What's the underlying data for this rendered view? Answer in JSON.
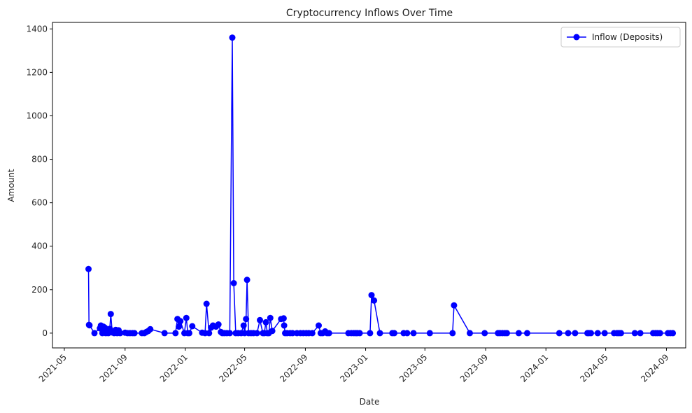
{
  "chart_data": {
    "type": "line",
    "title": "Cryptocurrency Inflows Over Time",
    "xlabel": "Date",
    "ylabel": "Amount",
    "x_range": [
      "2021-04-07",
      "2024-10-10"
    ],
    "ylim": [
      -68,
      1430
    ],
    "x_ticks": [
      "2021-05",
      "2021-09",
      "2022-01",
      "2022-05",
      "2022-09",
      "2023-01",
      "2023-05",
      "2023-09",
      "2024-01",
      "2024-05",
      "2024-09"
    ],
    "y_ticks": [
      0,
      200,
      400,
      600,
      800,
      1000,
      1200,
      1400
    ],
    "grid": false,
    "legend_position": "top-right",
    "colors": {
      "series": "#0000ff",
      "axis": "#000000",
      "legend_border": "#cccccc"
    },
    "series": [
      {
        "name": "Inflow (Deposits)",
        "marker": "circle",
        "points": [
          [
            "2021-06-19",
            295
          ],
          [
            "2021-06-20",
            38
          ],
          [
            "2021-06-21",
            36
          ],
          [
            "2021-07-01",
            0
          ],
          [
            "2021-07-12",
            22
          ],
          [
            "2021-07-14",
            35
          ],
          [
            "2021-07-17",
            0
          ],
          [
            "2021-07-19",
            30
          ],
          [
            "2021-07-22",
            25
          ],
          [
            "2021-07-24",
            0
          ],
          [
            "2021-07-26",
            12
          ],
          [
            "2021-07-29",
            0
          ],
          [
            "2021-08-01",
            20
          ],
          [
            "2021-08-03",
            88
          ],
          [
            "2021-08-06",
            3
          ],
          [
            "2021-08-10",
            0
          ],
          [
            "2021-08-13",
            15
          ],
          [
            "2021-08-16",
            0
          ],
          [
            "2021-08-19",
            13
          ],
          [
            "2021-08-22",
            0
          ],
          [
            "2021-09-01",
            2
          ],
          [
            "2021-09-06",
            0
          ],
          [
            "2021-09-11",
            0
          ],
          [
            "2021-09-16",
            0
          ],
          [
            "2021-09-20",
            0
          ],
          [
            "2021-10-05",
            0
          ],
          [
            "2021-10-10",
            0
          ],
          [
            "2021-10-14",
            5
          ],
          [
            "2021-10-18",
            10
          ],
          [
            "2021-10-22",
            18
          ],
          [
            "2021-11-20",
            0
          ],
          [
            "2021-12-12",
            0
          ],
          [
            "2021-12-16",
            65
          ],
          [
            "2021-12-19",
            30
          ],
          [
            "2021-12-22",
            55
          ],
          [
            "2021-12-30",
            0
          ],
          [
            "2022-01-03",
            70
          ],
          [
            "2022-01-06",
            0
          ],
          [
            "2022-01-09",
            0
          ],
          [
            "2022-01-15",
            32
          ],
          [
            "2022-02-04",
            2
          ],
          [
            "2022-02-10",
            0
          ],
          [
            "2022-02-13",
            135
          ],
          [
            "2022-02-18",
            0
          ],
          [
            "2022-02-22",
            25
          ],
          [
            "2022-02-26",
            35
          ],
          [
            "2022-03-04",
            30
          ],
          [
            "2022-03-09",
            40
          ],
          [
            "2022-03-14",
            5
          ],
          [
            "2022-03-17",
            0
          ],
          [
            "2022-03-21",
            0
          ],
          [
            "2022-03-26",
            0
          ],
          [
            "2022-04-01",
            0
          ],
          [
            "2022-04-06",
            1360
          ],
          [
            "2022-04-09",
            230
          ],
          [
            "2022-04-13",
            0
          ],
          [
            "2022-04-18",
            0
          ],
          [
            "2022-04-24",
            0
          ],
          [
            "2022-04-29",
            35
          ],
          [
            "2022-05-01",
            0
          ],
          [
            "2022-05-04",
            65
          ],
          [
            "2022-05-06",
            245
          ],
          [
            "2022-05-09",
            0
          ],
          [
            "2022-05-14",
            0
          ],
          [
            "2022-05-19",
            0
          ],
          [
            "2022-05-26",
            0
          ],
          [
            "2022-06-01",
            60
          ],
          [
            "2022-06-07",
            0
          ],
          [
            "2022-06-10",
            0
          ],
          [
            "2022-06-13",
            50
          ],
          [
            "2022-06-16",
            0
          ],
          [
            "2022-06-19",
            0
          ],
          [
            "2022-06-22",
            70
          ],
          [
            "2022-06-26",
            10
          ],
          [
            "2022-07-14",
            65
          ],
          [
            "2022-07-19",
            68
          ],
          [
            "2022-07-20",
            35
          ],
          [
            "2022-07-22",
            0
          ],
          [
            "2022-07-26",
            0
          ],
          [
            "2022-08-01",
            0
          ],
          [
            "2022-08-06",
            0
          ],
          [
            "2022-08-15",
            0
          ],
          [
            "2022-08-22",
            0
          ],
          [
            "2022-08-28",
            0
          ],
          [
            "2022-09-03",
            0
          ],
          [
            "2022-09-08",
            0
          ],
          [
            "2022-09-15",
            0
          ],
          [
            "2022-09-28",
            35
          ],
          [
            "2022-10-02",
            0
          ],
          [
            "2022-10-06",
            0
          ],
          [
            "2022-10-11",
            8
          ],
          [
            "2022-10-15",
            0
          ],
          [
            "2022-10-19",
            0
          ],
          [
            "2022-11-27",
            0
          ],
          [
            "2022-12-03",
            0
          ],
          [
            "2022-12-08",
            0
          ],
          [
            "2022-12-12",
            0
          ],
          [
            "2022-12-15",
            0
          ],
          [
            "2022-12-20",
            0
          ],
          [
            "2023-01-10",
            0
          ],
          [
            "2023-01-13",
            175
          ],
          [
            "2023-01-18",
            150
          ],
          [
            "2023-01-30",
            0
          ],
          [
            "2023-02-24",
            0
          ],
          [
            "2023-02-28",
            0
          ],
          [
            "2023-03-19",
            0
          ],
          [
            "2023-03-26",
            0
          ],
          [
            "2023-04-08",
            0
          ],
          [
            "2023-05-11",
            0
          ],
          [
            "2023-06-26",
            0
          ],
          [
            "2023-06-29",
            128
          ],
          [
            "2023-07-31",
            0
          ],
          [
            "2023-08-30",
            0
          ],
          [
            "2023-09-26",
            0
          ],
          [
            "2023-09-30",
            0
          ],
          [
            "2023-10-05",
            0
          ],
          [
            "2023-10-10",
            0
          ],
          [
            "2023-10-14",
            0
          ],
          [
            "2023-11-07",
            0
          ],
          [
            "2023-11-24",
            0
          ],
          [
            "2024-01-28",
            0
          ],
          [
            "2024-02-15",
            0
          ],
          [
            "2024-02-29",
            0
          ],
          [
            "2024-03-25",
            0
          ],
          [
            "2024-03-28",
            0
          ],
          [
            "2024-04-01",
            0
          ],
          [
            "2024-04-15",
            0
          ],
          [
            "2024-04-29",
            0
          ],
          [
            "2024-05-18",
            0
          ],
          [
            "2024-05-24",
            0
          ],
          [
            "2024-05-28",
            0
          ],
          [
            "2024-06-01",
            0
          ],
          [
            "2024-06-29",
            0
          ],
          [
            "2024-07-10",
            0
          ],
          [
            "2024-08-05",
            0
          ],
          [
            "2024-08-10",
            0
          ],
          [
            "2024-08-14",
            0
          ],
          [
            "2024-08-19",
            0
          ],
          [
            "2024-09-04",
            0
          ],
          [
            "2024-09-09",
            0
          ],
          [
            "2024-09-14",
            0
          ]
        ]
      }
    ]
  }
}
